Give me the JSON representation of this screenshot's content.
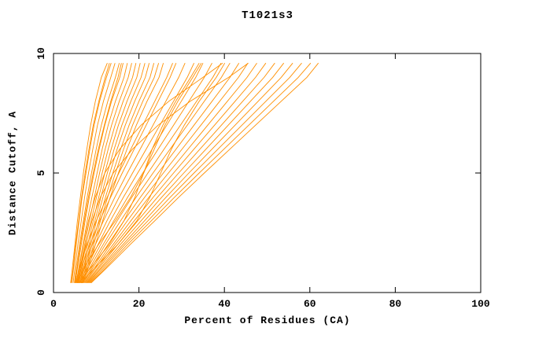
{
  "chart_data": {
    "type": "line",
    "title": "T1021s3",
    "xlabel": "Percent of Residues (CA)",
    "ylabel": "Distance Cutoff, A",
    "xlim": [
      0,
      100
    ],
    "ylim": [
      0,
      10
    ],
    "xticks": [
      0,
      20,
      40,
      60,
      80,
      100
    ],
    "yticks": [
      0,
      5,
      10
    ],
    "grid": false,
    "legend": "none",
    "axis_color": "#000000",
    "series_color": "#ff8f00",
    "y_levels": [
      0.4,
      1,
      2,
      3,
      4,
      5,
      6,
      7,
      8,
      9,
      9.6
    ],
    "curves": [
      [
        4.0,
        4.4,
        5.0,
        5.6,
        6.3,
        7.0,
        7.8,
        8.7,
        9.8,
        11.2,
        12.6
      ],
      [
        4.3,
        4.7,
        5.3,
        6.0,
        6.7,
        7.6,
        8.5,
        9.5,
        10.8,
        12.4,
        13.5
      ],
      [
        4.6,
        5.0,
        5.7,
        6.5,
        7.3,
        8.2,
        9.2,
        10.3,
        11.7,
        13.4,
        14.4
      ],
      [
        4.9,
        5.3,
        6.1,
        7.0,
        7.9,
        8.9,
        10.0,
        11.2,
        12.7,
        14.5,
        15.4
      ],
      [
        5.1,
        5.6,
        6.5,
        7.4,
        8.4,
        9.5,
        10.7,
        12.0,
        13.6,
        15.5,
        16.3
      ],
      [
        5.3,
        5.9,
        6.9,
        7.9,
        9.0,
        10.2,
        11.4,
        12.8,
        14.5,
        16.5,
        17.3
      ],
      [
        5.5,
        6.2,
        7.3,
        8.4,
        9.6,
        10.8,
        12.1,
        13.6,
        15.4,
        17.5,
        18.3
      ],
      [
        5.7,
        6.5,
        7.6,
        8.8,
        10.1,
        11.4,
        12.8,
        14.4,
        16.3,
        18.5,
        19.3
      ],
      [
        5.9,
        6.7,
        8.0,
        9.3,
        10.6,
        12.0,
        13.5,
        15.2,
        17.2,
        19.5,
        20.3
      ],
      [
        6.1,
        7.0,
        8.3,
        9.7,
        11.1,
        12.6,
        14.2,
        16.0,
        18.1,
        20.5,
        21.4
      ],
      [
        6.3,
        7.2,
        8.7,
        10.1,
        11.6,
        13.2,
        14.9,
        16.8,
        19.0,
        21.5,
        22.4
      ],
      [
        6.5,
        7.5,
        9.0,
        10.6,
        12.2,
        13.9,
        15.7,
        17.7,
        20.0,
        22.6,
        23.5
      ],
      [
        6.7,
        7.8,
        9.4,
        11.0,
        12.7,
        14.5,
        16.4,
        18.5,
        20.9,
        23.6,
        24.6
      ],
      [
        6.9,
        8.1,
        9.8,
        11.5,
        13.3,
        15.2,
        17.2,
        19.4,
        21.9,
        24.7,
        25.7
      ],
      [
        4.2,
        4.6,
        5.2,
        5.9,
        6.6,
        7.4,
        8.3,
        9.3,
        10.6,
        12.1,
        13.1
      ],
      [
        5.0,
        5.5,
        6.3,
        7.2,
        8.2,
        9.3,
        10.5,
        11.9,
        13.4,
        15.1,
        15.9
      ],
      [
        5.5,
        6.5,
        8.5,
        10.8,
        13.4,
        16.1,
        18.9,
        21.7,
        24.5,
        27.3,
        28.7
      ],
      [
        5.8,
        6.9,
        9.1,
        11.7,
        14.4,
        17.3,
        20.3,
        23.3,
        26.3,
        29.3,
        30.8
      ],
      [
        6.0,
        7.3,
        9.8,
        12.5,
        15.4,
        18.5,
        21.7,
        24.9,
        28.1,
        31.3,
        32.9
      ],
      [
        6.2,
        7.7,
        10.4,
        13.3,
        16.4,
        19.7,
        23.1,
        26.5,
        29.9,
        33.3,
        35.0
      ],
      [
        6.4,
        8.0,
        11.0,
        14.1,
        17.4,
        20.9,
        24.5,
        28.1,
        31.7,
        35.3,
        37.1
      ],
      [
        6.6,
        8.4,
        11.6,
        14.9,
        18.4,
        22.1,
        25.9,
        29.7,
        33.5,
        37.3,
        39.2
      ],
      [
        6.8,
        8.8,
        12.1,
        15.7,
        19.4,
        23.3,
        27.3,
        31.3,
        35.3,
        39.3,
        41.3
      ],
      [
        7.0,
        9.1,
        12.7,
        16.5,
        20.4,
        24.5,
        28.7,
        32.9,
        37.1,
        41.3,
        43.4
      ],
      [
        7.2,
        9.5,
        13.3,
        17.3,
        21.4,
        25.7,
        30.1,
        34.5,
        38.9,
        43.3,
        45.5
      ],
      [
        7.4,
        9.8,
        13.9,
        18.1,
        22.4,
        26.9,
        31.5,
        36.1,
        40.7,
        45.3,
        47.6
      ],
      [
        7.6,
        10.2,
        14.4,
        18.9,
        23.4,
        28.1,
        32.9,
        37.7,
        42.5,
        47.3,
        49.7
      ],
      [
        7.8,
        10.5,
        15.0,
        19.7,
        24.4,
        29.3,
        34.3,
        39.3,
        44.3,
        49.3,
        51.8
      ],
      [
        8.0,
        10.9,
        15.6,
        20.5,
        25.4,
        30.5,
        35.7,
        40.9,
        46.1,
        51.3,
        53.9
      ],
      [
        8.2,
        11.2,
        16.2,
        21.3,
        26.4,
        31.7,
        37.1,
        42.5,
        47.9,
        53.3,
        56.0
      ],
      [
        8.4,
        11.6,
        16.7,
        22.1,
        27.4,
        32.9,
        38.5,
        44.1,
        49.7,
        55.3,
        58.1
      ],
      [
        8.6,
        12.0,
        17.3,
        22.9,
        28.4,
        34.1,
        39.9,
        45.7,
        51.5,
        57.3,
        60.2
      ],
      [
        8.8,
        12.3,
        17.9,
        23.7,
        29.4,
        35.3,
        41.3,
        47.3,
        53.3,
        59.3,
        62.0
      ],
      [
        5.2,
        6.0,
        7.8,
        10.0,
        12.6,
        15.3,
        18.1,
        20.9,
        23.7,
        26.5,
        27.9
      ],
      [
        6.0,
        8.5,
        13.0,
        16.5,
        19.1,
        21.1,
        23.1,
        25.6,
        28.6,
        32.1,
        34.1
      ],
      [
        6.5,
        9.5,
        15.0,
        19.5,
        22.6,
        25.1,
        27.6,
        30.6,
        34.1,
        38.1,
        40.1
      ],
      [
        5.6,
        7.0,
        10.5,
        14.5,
        18.1,
        21.1,
        23.6,
        26.1,
        29.1,
        32.6,
        34.6
      ],
      [
        5.4,
        6.0,
        7.0,
        8.2,
        9.8,
        12.0,
        15.5,
        20.5,
        27.0,
        35.0,
        39.6
      ],
      [
        5.6,
        6.3,
        7.5,
        9.0,
        11.0,
        14.0,
        18.5,
        24.5,
        32.0,
        41.0,
        45.6
      ]
    ]
  }
}
